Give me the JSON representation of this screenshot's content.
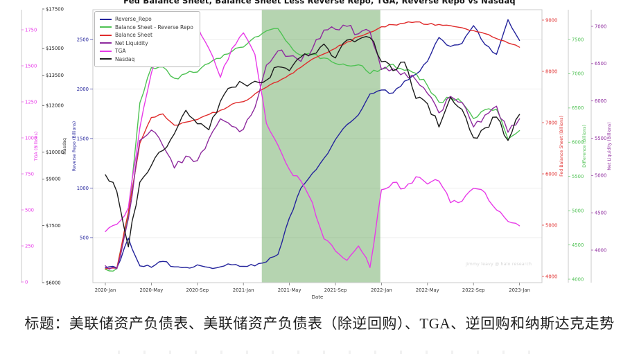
{
  "title": "Fed Balance Sheet, Balance Sheet Less Reverse Repo, TGA, Reverse Repo vs Nasdaq",
  "caption": "标题：美联储资产负债表、美联储资产负债表（除逆回购）、TGA、逆回购和纳斯达克走势",
  "watermark": "jimmy leavy @ halo research",
  "legend": {
    "items": [
      {
        "label": "Reverse_Repo",
        "color": "#24249c"
      },
      {
        "label": "Balance Sheet - Reverse Repo",
        "color": "#4fc254"
      },
      {
        "label": "Balance Sheet",
        "color": "#e02c2c"
      },
      {
        "label": "Net Liquidity",
        "color": "#8e2b9e"
      },
      {
        "label": "TGA",
        "color": "#e83ae8"
      },
      {
        "label": "Nasdaq",
        "color": "#1c1c1c"
      }
    ]
  },
  "x_axis": {
    "label": "Date",
    "tick_labels": [
      "2020-Jan",
      "2020-May",
      "2020-Sep",
      "2021-Jan",
      "2021-May",
      "2021-Sep",
      "2022-Jan",
      "2022-May",
      "2022-Sep",
      "2023-Jan"
    ],
    "tick_month_index": [
      0,
      4,
      8,
      12,
      16,
      20,
      24,
      28,
      32,
      36
    ]
  },
  "y_axes": [
    {
      "id": "tga",
      "title": "TGA (Billions)",
      "side": "left",
      "color": "#e83ae8",
      "scale": "linear",
      "range": [
        0,
        1890
      ],
      "tick_labels": [
        "1750",
        "1500",
        "1250",
        "1000",
        "750",
        "500",
        "250",
        "0"
      ],
      "tick_values": [
        1750,
        1500,
        1250,
        1000,
        750,
        500,
        250,
        0
      ]
    },
    {
      "id": "nasdaq",
      "title": "Nasdaq",
      "side": "left",
      "color": "#222222",
      "scale": "log",
      "range": [
        6000,
        17550
      ],
      "tick_labels": [
        "$17500",
        "$15000",
        "$13500",
        "$12000",
        "$10000",
        "$9000",
        "$7500",
        "$6000"
      ],
      "tick_values": [
        17500,
        15000,
        13500,
        12000,
        10000,
        9000,
        7500,
        6000
      ]
    },
    {
      "id": "reverse_repo",
      "title": "Reverse Repo (Billions)",
      "side": "left",
      "color": "#24249c",
      "scale": "linear",
      "range": [
        55,
        2790
      ],
      "tick_labels": [
        "2500",
        "2000",
        "1500",
        "1000",
        "500"
      ],
      "tick_values": [
        2500,
        2000,
        1500,
        1000,
        500
      ]
    },
    {
      "id": "balance_sheet",
      "title": "Fed Balance Sheet (Billions)",
      "side": "right",
      "color": "#e02c2c",
      "scale": "linear",
      "range": [
        3880,
        9200
      ],
      "tick_labels": [
        "9000",
        "8000",
        "7000",
        "6000",
        "5000",
        "4000"
      ],
      "tick_values": [
        9000,
        8000,
        7000,
        6000,
        5000,
        4000
      ]
    },
    {
      "id": "difference",
      "title": "Difference (Billions)",
      "side": "right",
      "color": "#4fc254",
      "scale": "linear",
      "range": [
        3950,
        7935
      ],
      "tick_labels": [
        "7500",
        "7000",
        "6500",
        "6000",
        "5500",
        "5000",
        "4500",
        "4000"
      ],
      "tick_values": [
        7500,
        7000,
        6500,
        6000,
        5500,
        5000,
        4500,
        4000
      ]
    },
    {
      "id": "net_liquidity",
      "title": "Net Liquidity (Billions)",
      "side": "right",
      "color": "#8e2b9e",
      "scale": "linear",
      "range": [
        3565,
        7225
      ],
      "tick_labels": [
        "7000",
        "6500",
        "6000",
        "5500",
        "5000",
        "4500",
        "4000"
      ],
      "tick_values": [
        7000,
        6500,
        6000,
        5500,
        5000,
        4500,
        4000
      ]
    }
  ],
  "shaded_region": {
    "start": "2021-02",
    "end": "2021-12",
    "start_month_index": 13.6,
    "end_month_index": 23.9,
    "color": "rgba(90,160,80,0.45)"
  },
  "chart_data": {
    "type": "line",
    "x": [
      "2020-01",
      "2020-02",
      "2020-03",
      "2020-04",
      "2020-05",
      "2020-06",
      "2020-07",
      "2020-08",
      "2020-09",
      "2020-10",
      "2020-11",
      "2020-12",
      "2021-01",
      "2021-02",
      "2021-03",
      "2021-04",
      "2021-05",
      "2021-06",
      "2021-07",
      "2021-08",
      "2021-09",
      "2021-10",
      "2021-11",
      "2021-12",
      "2022-01",
      "2022-02",
      "2022-03",
      "2022-04",
      "2022-05",
      "2022-06",
      "2022-07",
      "2022-08",
      "2022-09",
      "2022-10",
      "2022-11",
      "2022-12",
      "2023-01"
    ],
    "series": [
      {
        "name": "Reverse_Repo",
        "axis": "reverse_repo",
        "color": "#24249c",
        "unit": "billions USD",
        "values": [
          195,
          195,
          495,
          215,
          200,
          260,
          205,
          200,
          225,
          200,
          205,
          225,
          210,
          215,
          255,
          330,
          700,
          1000,
          1150,
          1300,
          1490,
          1640,
          1740,
          1950,
          1990,
          1960,
          2080,
          2150,
          2280,
          2520,
          2430,
          2460,
          2640,
          2450,
          2350,
          2700,
          2490
        ]
      },
      {
        "name": "Balance Sheet - Reverse Repo",
        "axis": "difference",
        "color": "#4fc254",
        "unit": "billions USD",
        "values": [
          4145,
          4155,
          4945,
          6575,
          7090,
          7100,
          6935,
          7000,
          7025,
          7150,
          7225,
          7325,
          7390,
          7535,
          7625,
          7660,
          7425,
          7270,
          7280,
          7230,
          7150,
          7120,
          7130,
          7000,
          7070,
          7140,
          7050,
          7005,
          6825,
          6585,
          6650,
          6580,
          6345,
          6475,
          6480,
          6045,
          6170
        ]
      },
      {
        "name": "Balance Sheet",
        "axis": "balance_sheet",
        "color": "#e02c2c",
        "unit": "billions USD",
        "values": [
          4150,
          4160,
          5250,
          6600,
          7100,
          7170,
          6950,
          7010,
          7060,
          7160,
          7240,
          7360,
          7410,
          7560,
          7690,
          7800,
          7935,
          8080,
          8240,
          8340,
          8450,
          8570,
          8680,
          8760,
          8870,
          8910,
          8940,
          8965,
          8915,
          8915,
          8890,
          8850,
          8795,
          8735,
          8640,
          8555,
          8470
        ]
      },
      {
        "name": "Net Liquidity",
        "axis": "net_liquidity",
        "color": "#8e2b9e",
        "unit": "billions USD",
        "values": [
          3790,
          3750,
          4420,
          5470,
          5610,
          5400,
          5100,
          5260,
          5200,
          5490,
          5760,
          5660,
          5620,
          5910,
          6480,
          6670,
          6600,
          6530,
          6700,
          6950,
          6960,
          7000,
          6900,
          6930,
          6420,
          6430,
          6380,
          6280,
          6100,
          5840,
          6060,
          5980,
          5650,
          5810,
          5930,
          5580,
          5760
        ]
      },
      {
        "name": "TGA",
        "axis": "tga",
        "color": "#e83ae8",
        "unit": "billions USD",
        "values": [
          350,
          400,
          515,
          1070,
          1450,
          1660,
          1800,
          1700,
          1780,
          1620,
          1420,
          1620,
          1729,
          1580,
          1100,
          950,
          780,
          700,
          550,
          300,
          215,
          150,
          250,
          100,
          640,
          690,
          650,
          730,
          680,
          700,
          550,
          560,
          650,
          620,
          500,
          420,
          390
        ]
      },
      {
        "name": "Nasdaq",
        "axis": "nasdaq",
        "color": "#1c1c1c",
        "unit": "index points",
        "values": [
          9151,
          8567,
          6900,
          8890,
          9490,
          10059,
          10745,
          11775,
          11168,
          10912,
          12199,
          12888,
          13071,
          13192,
          13247,
          13963,
          13749,
          14504,
          14673,
          15259,
          14449,
          15498,
          15538,
          15645,
          14240,
          13751,
          14221,
          12335,
          12081,
          11029,
          12391,
          11816,
          10576,
          10988,
          11468,
          10466,
          11585
        ]
      }
    ],
    "grid": "horizontal, on Reverse Repo axis ticks",
    "legend_position": "upper left"
  }
}
